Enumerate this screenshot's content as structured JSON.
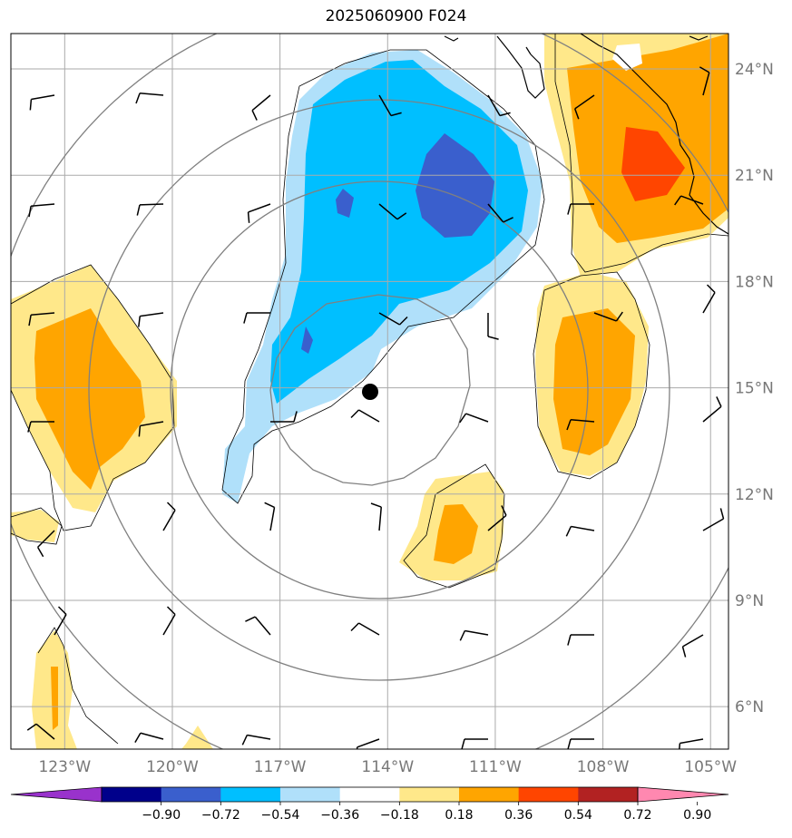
{
  "title": "2025060900 F024",
  "map": {
    "lon_range": [
      -124.5,
      -104.5
    ],
    "lat_range": [
      4.8,
      25.0
    ],
    "lat_ticks": [
      "24°N",
      "21°N",
      "18°N",
      "15°N",
      "12°N",
      "9°N",
      "6°N"
    ],
    "lat_values": [
      24,
      21,
      18,
      15,
      12,
      9,
      6
    ],
    "lon_ticks": [
      "123°W",
      "120°W",
      "117°W",
      "114°W",
      "111°W",
      "108°W",
      "105°W"
    ],
    "lon_values": [
      -123,
      -120,
      -117,
      -114,
      -111,
      -108,
      -105
    ],
    "storm_center": {
      "lon": -114.3,
      "lat": 14.7
    },
    "range_rings_deg": [
      3,
      6,
      9,
      12
    ],
    "gridlines": true
  },
  "colorbar": {
    "ticks": [
      "−0.90",
      "−0.72",
      "−0.54",
      "−0.36",
      "−0.18",
      "0.18",
      "0.36",
      "0.54",
      "0.72",
      "0.90"
    ],
    "colors": [
      "#9932cc",
      "#00008b",
      "#3a5fcd",
      "#00bfff",
      "#b0e0fa",
      "#ffffff",
      "#ffe88a",
      "#ffa500",
      "#ff4500",
      "#b22222",
      "#ff88b0"
    ]
  }
}
